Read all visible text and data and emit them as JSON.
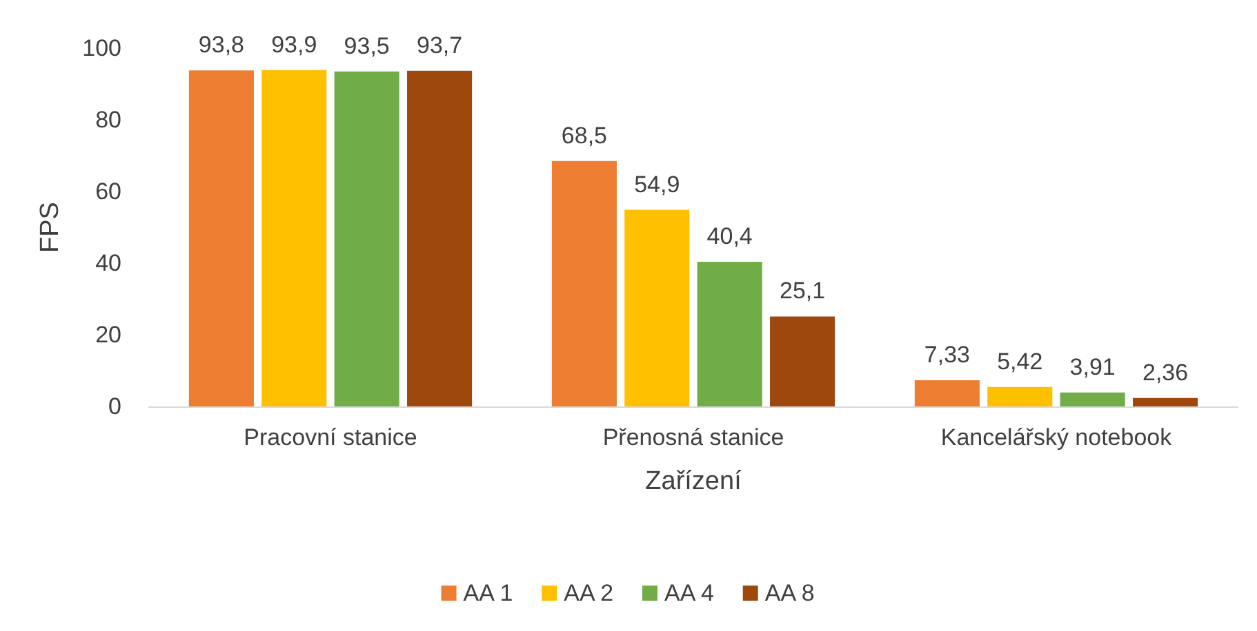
{
  "chart_data": {
    "type": "bar",
    "xlabel": "Zařízení",
    "ylabel": "FPS",
    "categories": [
      "Pracovní stanice",
      "Přenosná stanice",
      "Kancelářský notebook"
    ],
    "series": [
      {
        "name": "AA 1",
        "color": "#ed7d31",
        "values": [
          93.8,
          68.5,
          7.33
        ],
        "value_labels": [
          "93,8",
          "68,5",
          "7,33"
        ]
      },
      {
        "name": "AA 2",
        "color": "#ffc000",
        "values": [
          93.9,
          54.9,
          5.42
        ],
        "value_labels": [
          "93,9",
          "54,9",
          "5,42"
        ]
      },
      {
        "name": "AA 4",
        "color": "#70ad47",
        "values": [
          93.5,
          40.4,
          3.91
        ],
        "value_labels": [
          "93,5",
          "40,4",
          "3,91"
        ]
      },
      {
        "name": "AA 8",
        "color": "#9e480e",
        "values": [
          93.7,
          25.1,
          2.36
        ],
        "value_labels": [
          "93,7",
          "25,1",
          "2,36"
        ]
      }
    ],
    "ylim": [
      0,
      100
    ],
    "yticks": [
      0,
      20,
      40,
      60,
      80,
      100
    ],
    "grid": false,
    "legend": "bottom"
  }
}
